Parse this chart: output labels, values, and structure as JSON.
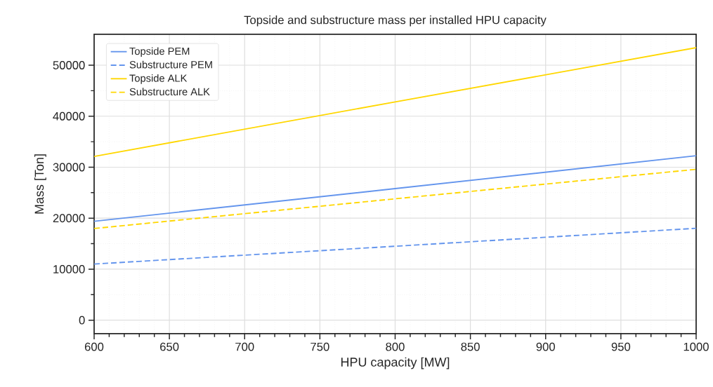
{
  "chart_data": {
    "type": "line",
    "title": "Topside and substructure mass per installed HPU capacity",
    "xlabel": "HPU capacity [MW]",
    "ylabel": "Mass [Ton]",
    "x": [
      600,
      800,
      1000
    ],
    "series": [
      {
        "name": "Topside PEM",
        "color": "#6495ed",
        "line_style": "solid",
        "values": [
          19400,
          25800,
          32250
        ]
      },
      {
        "name": "Substructure PEM",
        "color": "#6495ed",
        "line_style": "dashed",
        "values": [
          11010,
          14500,
          18020
        ]
      },
      {
        "name": "Topside ALK",
        "color": "#ffd700",
        "line_style": "solid",
        "values": [
          32110,
          42800,
          53440
        ]
      },
      {
        "name": "Substructure ALK",
        "color": "#ffd700",
        "line_style": "dashed",
        "values": [
          17980,
          23800,
          29580
        ]
      }
    ],
    "xlim": [
      600,
      1000
    ],
    "ylim": [
      -2650,
      56050
    ],
    "xticks": [
      600,
      650,
      700,
      750,
      800,
      850,
      900,
      950,
      1000
    ],
    "yticks": [
      0,
      10000,
      20000,
      30000,
      40000,
      50000
    ],
    "grid": true,
    "legend": "top left",
    "marker": "none"
  }
}
